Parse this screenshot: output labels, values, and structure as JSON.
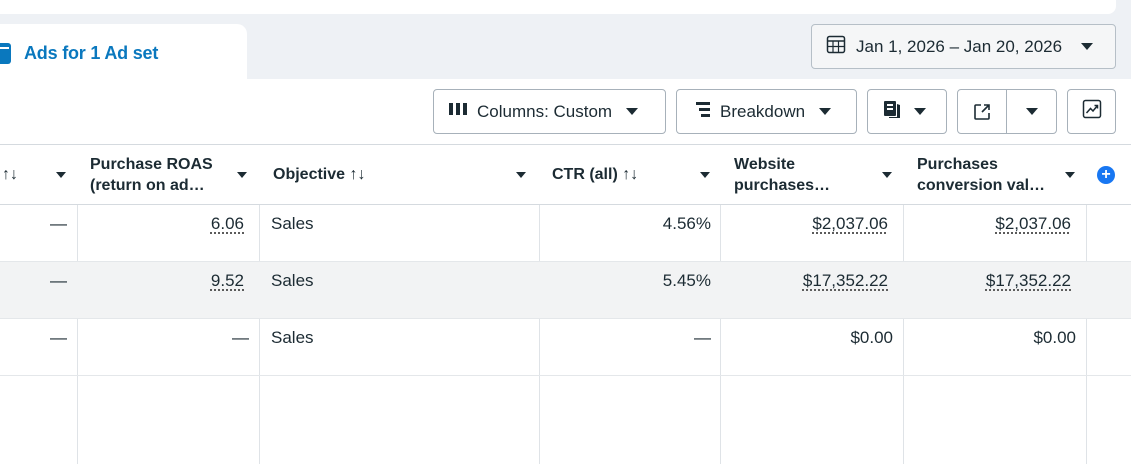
{
  "tab": {
    "label": "Ads for 1 Ad set"
  },
  "date_range": {
    "label": "Jan 1, 2026 – Jan 20, 2026"
  },
  "toolbar": {
    "columns_label": "Columns: Custom",
    "breakdown_label": "Breakdown"
  },
  "icons": {
    "tab": "document-icon",
    "calendar": "calendar-icon",
    "columns": "columns-icon",
    "breakdown": "breakdown-icon",
    "reports": "reports-icon",
    "export": "export-icon",
    "chart": "chart-icon",
    "add": "add-column-icon"
  },
  "colors": {
    "accent": "#0a78be",
    "add": "#1877f2",
    "alt_row": "#f2f3f4"
  },
  "table": {
    "headers": [
      {
        "line1": "↑↓",
        "line2": ""
      },
      {
        "line1": "Purchase ROAS",
        "line2": "(return on ad…"
      },
      {
        "line1": "Objective ↑↓",
        "line2": ""
      },
      {
        "line1": "CTR (all) ↑↓",
        "line2": ""
      },
      {
        "line1": "Website",
        "line2": "purchases…"
      },
      {
        "line1": "Purchases",
        "line2": "conversion val…"
      }
    ],
    "rows": [
      [
        "—",
        "6.06",
        "Sales",
        "4.56%",
        "$2,037.06",
        "$2,037.06"
      ],
      [
        "—",
        "9.52",
        "Sales",
        "5.45%",
        "$17,352.22",
        "$17,352.22"
      ],
      [
        "—",
        "—",
        "Sales",
        "—",
        "$0.00",
        "$0.00"
      ]
    ]
  }
}
